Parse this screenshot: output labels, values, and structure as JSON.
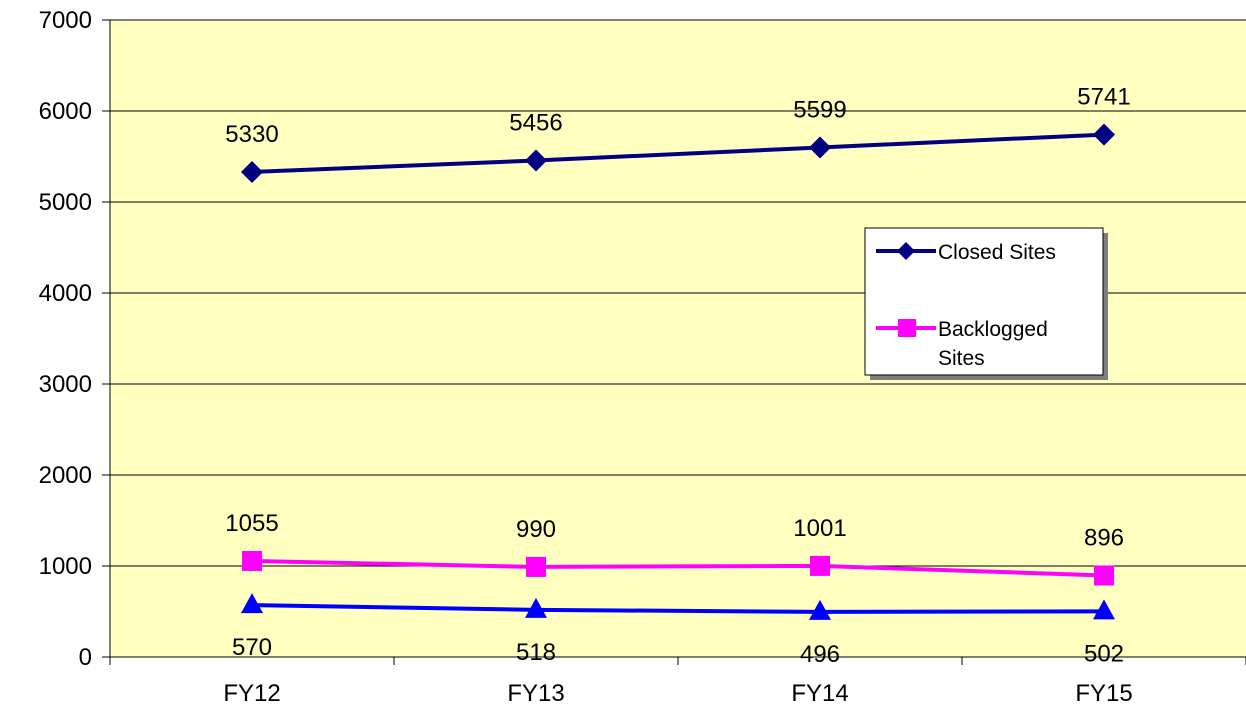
{
  "chart_data": {
    "type": "line",
    "categories": [
      "FY12",
      "FY13",
      "FY14",
      "FY15"
    ],
    "ylim": [
      0,
      7000
    ],
    "yticks": [
      0,
      1000,
      2000,
      3000,
      4000,
      5000,
      6000,
      7000
    ],
    "grid": true,
    "plot_background": "#FFFFC0",
    "legend_position": "right",
    "series": [
      {
        "name": "Closed Sites",
        "values": [
          5330,
          5456,
          5599,
          5741
        ],
        "color": "#000080",
        "marker": "diamond",
        "labels": "above",
        "in_legend": true
      },
      {
        "name": "Backlogged Sites",
        "values": [
          1055,
          990,
          1001,
          896
        ],
        "color": "#FF00FF",
        "marker": "square",
        "labels": "above",
        "in_legend": true
      },
      {
        "values": [
          570,
          518,
          496,
          502
        ],
        "color": "#0000FF",
        "marker": "triangle",
        "labels": "below",
        "in_legend": false
      }
    ]
  },
  "legend": {
    "closed_label": "Closed Sites",
    "backlogged_line1": "Backlogged",
    "backlogged_line2": "Sites"
  }
}
